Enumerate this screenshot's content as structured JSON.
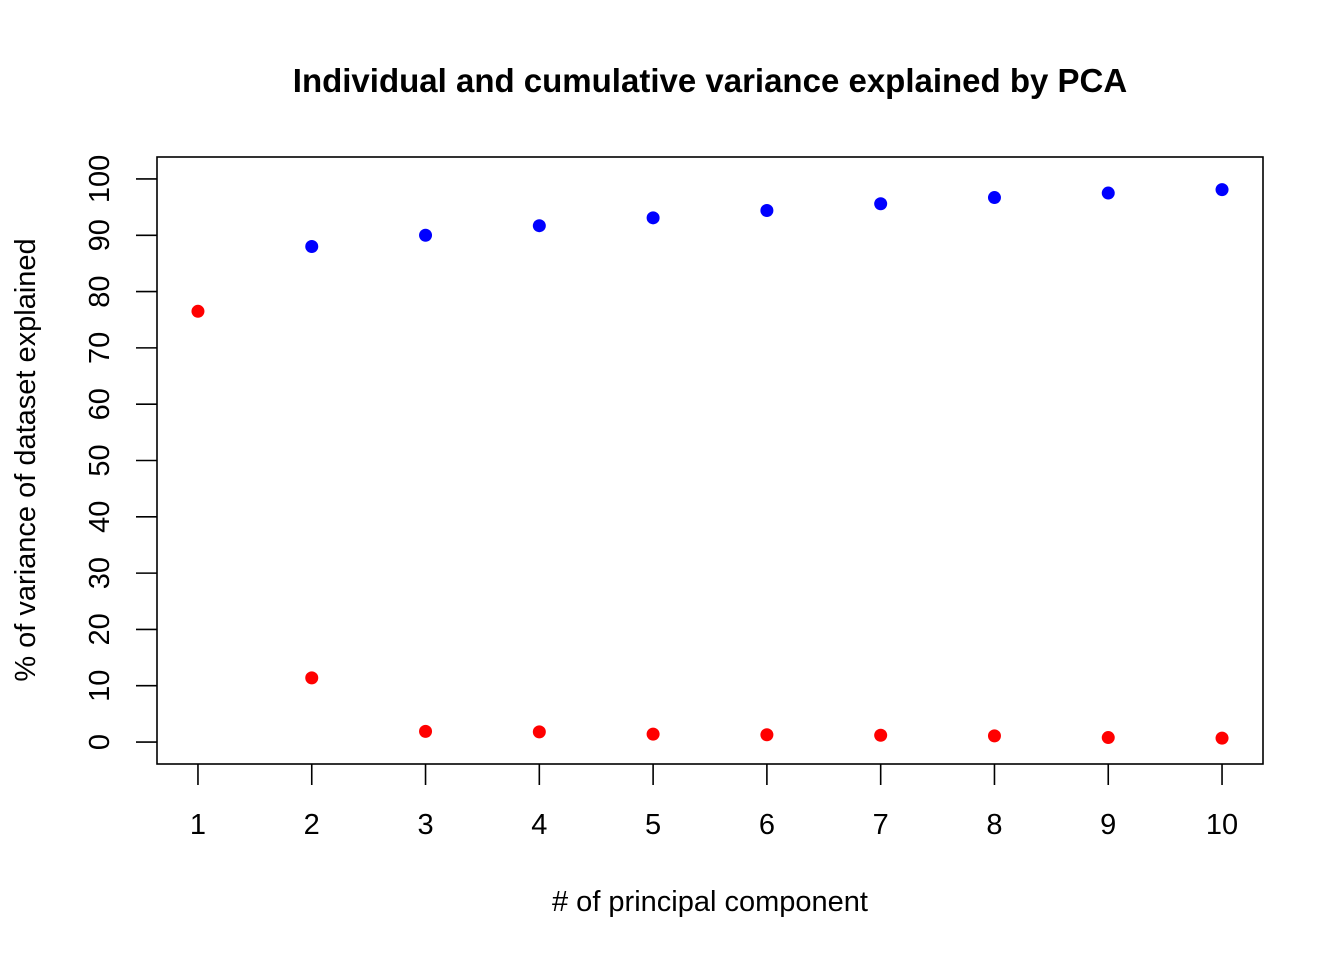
{
  "chart_data": {
    "type": "scatter",
    "title": "Individual and cumulative variance explained by PCA",
    "xlabel": "# of principal component",
    "ylabel": "% of variance of dataset explained",
    "x": [
      1,
      2,
      3,
      4,
      5,
      6,
      7,
      8,
      9,
      10
    ],
    "xticks": [
      "1",
      "2",
      "3",
      "4",
      "5",
      "6",
      "7",
      "8",
      "9",
      "10"
    ],
    "yticks": [
      "0",
      "10",
      "20",
      "30",
      "40",
      "50",
      "60",
      "70",
      "80",
      "90",
      "100"
    ],
    "xlim": [
      0.64,
      10.36
    ],
    "ylim": [
      -3.9,
      103.9
    ],
    "grid": false,
    "series": [
      {
        "color": "#ff0000",
        "points": [
          {
            "x": 1,
            "y": 76.5
          },
          {
            "x": 2,
            "y": 11.4
          },
          {
            "x": 3,
            "y": 1.9
          },
          {
            "x": 4,
            "y": 1.8
          },
          {
            "x": 5,
            "y": 1.4
          },
          {
            "x": 6,
            "y": 1.3
          },
          {
            "x": 7,
            "y": 1.2
          },
          {
            "x": 8,
            "y": 1.1
          },
          {
            "x": 9,
            "y": 0.8
          },
          {
            "x": 10,
            "y": 0.7
          }
        ]
      },
      {
        "color": "#0000ff",
        "points": [
          {
            "x": 2,
            "y": 88.0
          },
          {
            "x": 3,
            "y": 90.0
          },
          {
            "x": 4,
            "y": 91.7
          },
          {
            "x": 5,
            "y": 93.1
          },
          {
            "x": 6,
            "y": 94.4
          },
          {
            "x": 7,
            "y": 95.6
          },
          {
            "x": 8,
            "y": 96.7
          },
          {
            "x": 9,
            "y": 97.5
          },
          {
            "x": 10,
            "y": 98.1
          }
        ]
      }
    ]
  }
}
